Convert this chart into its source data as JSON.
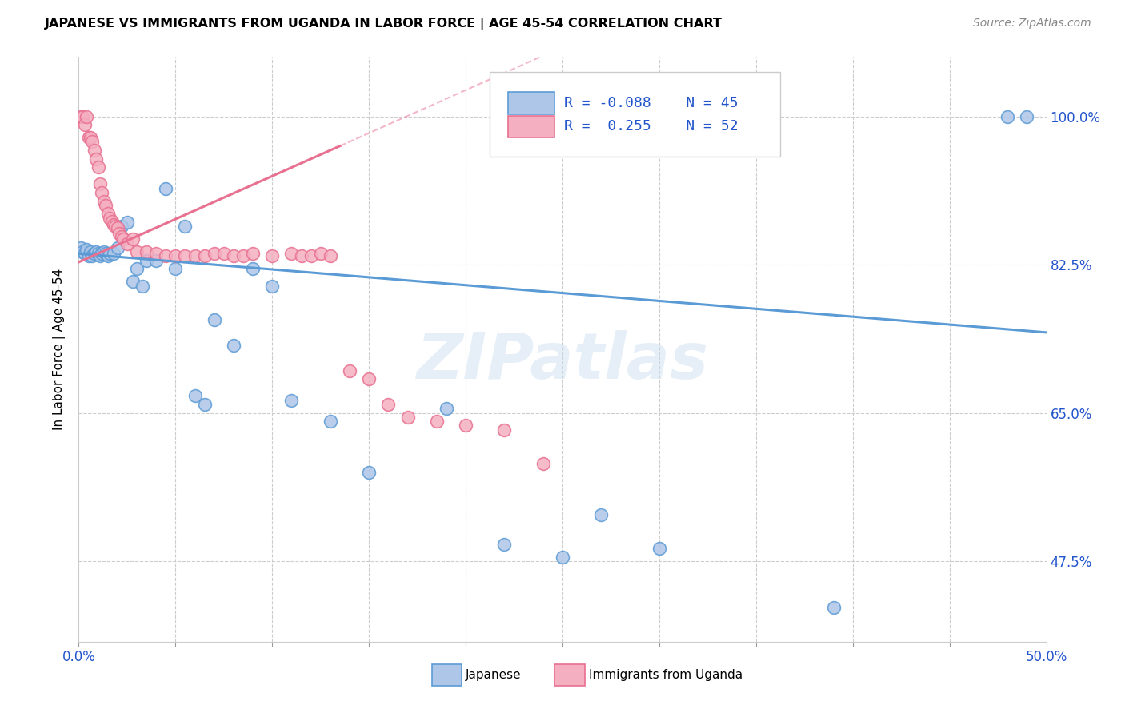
{
  "title": "JAPANESE VS IMMIGRANTS FROM UGANDA IN LABOR FORCE | AGE 45-54 CORRELATION CHART",
  "source": "Source: ZipAtlas.com",
  "ylabel": "In Labor Force | Age 45-54",
  "yticks": [
    "47.5%",
    "65.0%",
    "82.5%",
    "100.0%"
  ],
  "ytick_vals": [
    0.475,
    0.65,
    0.825,
    1.0
  ],
  "xlim": [
    0.0,
    0.5
  ],
  "ylim": [
    0.38,
    1.07
  ],
  "legend_r_blue": "-0.088",
  "legend_n_blue": "45",
  "legend_r_pink": "0.255",
  "legend_n_pink": "52",
  "blue_color": "#aec6e8",
  "pink_color": "#f4afc0",
  "blue_edge_color": "#5b9bd5",
  "pink_edge_color": "#e87090",
  "blue_line_color": "#5b9bd5",
  "pink_line_color": "#e87090",
  "watermark": "ZIPatlas",
  "blue_trend_x": [
    0.0,
    0.5
  ],
  "blue_trend_y": [
    0.838,
    0.745
  ],
  "pink_trend_x": [
    0.0,
    0.135
  ],
  "pink_trend_y": [
    0.828,
    0.965
  ],
  "blue_scatter_x": [
    0.001,
    0.002,
    0.003,
    0.004,
    0.005,
    0.006,
    0.007,
    0.008,
    0.009,
    0.01,
    0.011,
    0.012,
    0.013,
    0.014,
    0.015,
    0.016,
    0.018,
    0.02,
    0.022,
    0.025,
    0.028,
    0.03,
    0.033,
    0.035,
    0.04,
    0.045,
    0.05,
    0.055,
    0.06,
    0.065,
    0.07,
    0.08,
    0.09,
    0.1,
    0.11,
    0.13,
    0.15,
    0.19,
    0.22,
    0.25,
    0.27,
    0.3,
    0.39,
    0.48,
    0.49
  ],
  "blue_scatter_y": [
    0.845,
    0.84,
    0.838,
    0.843,
    0.835,
    0.84,
    0.835,
    0.838,
    0.84,
    0.838,
    0.835,
    0.838,
    0.84,
    0.838,
    0.835,
    0.838,
    0.838,
    0.845,
    0.87,
    0.875,
    0.805,
    0.82,
    0.8,
    0.83,
    0.83,
    0.915,
    0.82,
    0.87,
    0.67,
    0.66,
    0.76,
    0.73,
    0.82,
    0.8,
    0.665,
    0.64,
    0.58,
    0.655,
    0.495,
    0.48,
    0.53,
    0.49,
    0.42,
    1.0,
    1.0
  ],
  "pink_scatter_x": [
    0.001,
    0.002,
    0.003,
    0.004,
    0.005,
    0.006,
    0.007,
    0.008,
    0.009,
    0.01,
    0.011,
    0.012,
    0.013,
    0.014,
    0.015,
    0.016,
    0.017,
    0.018,
    0.019,
    0.02,
    0.021,
    0.022,
    0.023,
    0.025,
    0.028,
    0.03,
    0.035,
    0.04,
    0.045,
    0.05,
    0.055,
    0.06,
    0.065,
    0.07,
    0.075,
    0.08,
    0.085,
    0.09,
    0.1,
    0.11,
    0.115,
    0.12,
    0.125,
    0.13,
    0.14,
    0.15,
    0.16,
    0.17,
    0.185,
    0.2,
    0.22,
    0.24
  ],
  "pink_scatter_y": [
    1.0,
    1.0,
    0.99,
    1.0,
    0.975,
    0.975,
    0.97,
    0.96,
    0.95,
    0.94,
    0.92,
    0.91,
    0.9,
    0.895,
    0.885,
    0.88,
    0.876,
    0.872,
    0.87,
    0.868,
    0.862,
    0.858,
    0.855,
    0.85,
    0.855,
    0.84,
    0.84,
    0.838,
    0.835,
    0.835,
    0.835,
    0.835,
    0.835,
    0.838,
    0.838,
    0.835,
    0.835,
    0.838,
    0.835,
    0.838,
    0.835,
    0.835,
    0.838,
    0.835,
    0.7,
    0.69,
    0.66,
    0.645,
    0.64,
    0.635,
    0.63,
    0.59
  ]
}
